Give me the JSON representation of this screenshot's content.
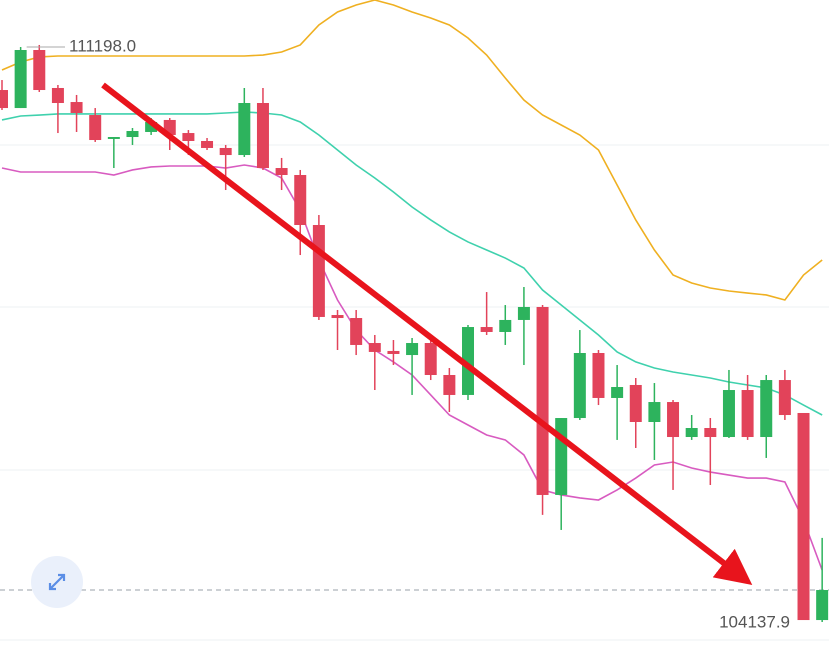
{
  "chart_data": {
    "type": "candlestick",
    "ylim": [
      103769,
      111777
    ],
    "up_color": "#2db35d",
    "down_color": "#e2435a",
    "open": [
      110668,
      110446,
      111161,
      110693,
      110520,
      110360,
      110065,
      110089,
      110151,
      110299,
      110138,
      110040,
      109954,
      109867,
      110508,
      109707,
      109621,
      109005,
      107896,
      107859,
      107551,
      107453,
      107403,
      107551,
      107157,
      106911,
      107748,
      107687,
      107835,
      107995,
      105679,
      106627,
      107428,
      106874,
      107034,
      106578,
      106824,
      106393,
      106504,
      106393,
      106972,
      106393,
      107095,
      106689,
      104138
    ],
    "high": [
      110791,
      111198,
      111223,
      110730,
      110607,
      110446,
      110089,
      110200,
      110323,
      110323,
      110175,
      110077,
      109991,
      110693,
      110693,
      109831,
      109683,
      109128,
      107958,
      107958,
      107650,
      107588,
      107613,
      107650,
      107243,
      107773,
      108179,
      108019,
      108241,
      108019,
      106627,
      107711,
      107465,
      107280,
      107120,
      107058,
      106849,
      106664,
      106627,
      107219,
      107157,
      107157,
      107219,
      106689,
      105150
    ],
    "low": [
      110422,
      110446,
      110644,
      110138,
      110151,
      110028,
      109707,
      109991,
      110114,
      109929,
      109867,
      109929,
      109436,
      109843,
      109683,
      109436,
      108635,
      107835,
      107465,
      107403,
      106972,
      107280,
      106911,
      107095,
      106701,
      106849,
      107650,
      107527,
      107280,
      105433,
      105248,
      106603,
      106787,
      106357,
      106258,
      106110,
      105741,
      106357,
      105802,
      106381,
      106357,
      106135,
      106603,
      104138,
      104114
    ],
    "close": [
      110446,
      111161,
      110668,
      110508,
      110385,
      110052,
      110089,
      110163,
      110274,
      110114,
      110040,
      109954,
      109867,
      110508,
      109707,
      109621,
      109005,
      107872,
      107859,
      107527,
      107441,
      107416,
      107551,
      107157,
      106911,
      107748,
      107687,
      107835,
      107995,
      105679,
      106627,
      107428,
      106874,
      107009,
      106578,
      106824,
      106393,
      106504,
      106393,
      106972,
      106393,
      107095,
      106664,
      104138,
      104508
    ],
    "lines": [
      {
        "color": "#efb021",
        "values": [
          110915,
          111013,
          111075,
          111087,
          111087,
          111087,
          111087,
          111087,
          111087,
          111087,
          111087,
          111087,
          111087,
          111087,
          111099,
          111136,
          111223,
          111469,
          111629,
          111715,
          111777,
          111715,
          111629,
          111555,
          111469,
          111309,
          111099,
          110816,
          110545,
          110360,
          110237,
          110114,
          109929,
          109498,
          109067,
          108697,
          108389,
          108290,
          108229,
          108192,
          108167,
          108143,
          108081,
          108389,
          108574
        ]
      },
      {
        "color": "#3fd1ad",
        "values": [
          110299,
          110348,
          110360,
          110373,
          110373,
          110373,
          110373,
          110373,
          110373,
          110373,
          110373,
          110373,
          110385,
          110397,
          110385,
          110360,
          110274,
          110114,
          109929,
          109744,
          109584,
          109412,
          109227,
          109067,
          108919,
          108796,
          108697,
          108598,
          108475,
          108204,
          108019,
          107835,
          107650,
          107441,
          107318,
          107243,
          107194,
          107157,
          107120,
          107071,
          107034,
          106997,
          106911,
          106787,
          106664
        ]
      },
      {
        "color": "#d85bc0",
        "values": [
          109707,
          109658,
          109658,
          109658,
          109658,
          109658,
          109621,
          109683,
          109720,
          109732,
          109732,
          109732,
          109707,
          109744,
          109707,
          109584,
          109185,
          108574,
          108081,
          107711,
          107465,
          107318,
          107157,
          106911,
          106664,
          106541,
          106418,
          106357,
          106172,
          105741,
          105679,
          105642,
          105617,
          105741,
          105887,
          106048,
          106085,
          106011,
          105961,
          105924,
          105887,
          105887,
          105839,
          105370,
          104753
        ]
      }
    ],
    "price_line": 104508,
    "annotations": [
      {
        "value": 111198,
        "label": "111198.0"
      },
      {
        "value": 104137.9,
        "label": "104137.9"
      }
    ]
  }
}
